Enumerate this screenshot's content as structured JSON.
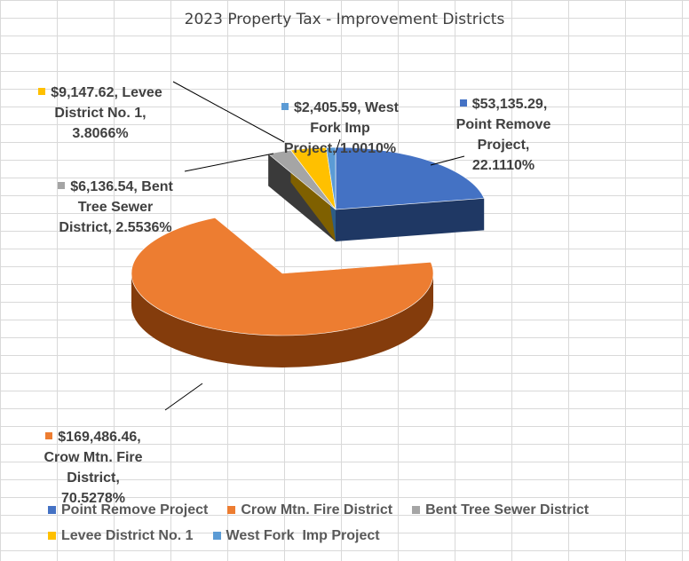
{
  "chart_data": {
    "type": "pie",
    "title": "2023 Property Tax - Improvement Districts",
    "categories": [
      "Point Remove Project",
      "Crow Mtn. Fire District",
      "Bent Tree Sewer District",
      "Levee District No. 1",
      "West Fork  Imp Project"
    ],
    "values": [
      53135.29,
      169486.46,
      6136.54,
      9147.62,
      2405.59
    ],
    "percents": [
      22.111,
      70.5278,
      2.5536,
      3.8066,
      1.001
    ],
    "colors": [
      "#4472c4",
      "#ed7d31",
      "#a5a5a5",
      "#ffc000",
      "#5b9bd5"
    ],
    "side_colors": [
      "#1f3864",
      "#843c0c",
      "#3a3a3a",
      "#7f6000",
      "#2e5d87"
    ],
    "data_labels": [
      "$53,135.29,\nPoint Remove\nProject,\n22.1110%",
      "$169,486.46,\nCrow Mtn. Fire\nDistrict,\n70.5278%",
      "$6,136.54, Bent\nTree Sewer\nDistrict, 2.5536%",
      "$9,147.62, Levee\nDistrict No. 1,\n3.8066%",
      "$2,405.59, West\nFork  Imp\nProject, 1.0010%"
    ],
    "legend_position": "bottom",
    "grid": true
  }
}
